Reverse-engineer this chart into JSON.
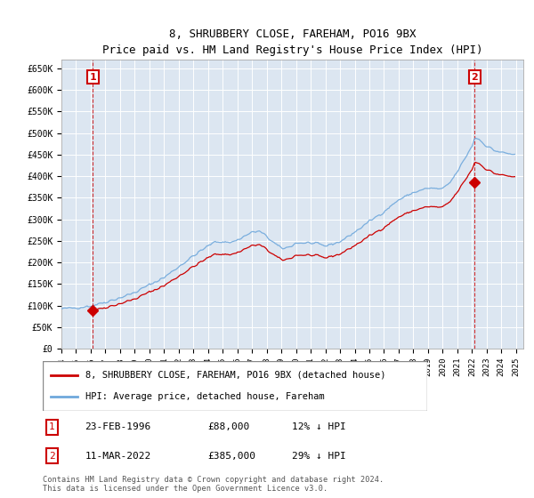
{
  "title": "8, SHRUBBERY CLOSE, FAREHAM, PO16 9BX",
  "subtitle": "Price paid vs. HM Land Registry's House Price Index (HPI)",
  "ylabel_ticks": [
    "£0",
    "£50K",
    "£100K",
    "£150K",
    "£200K",
    "£250K",
    "£300K",
    "£350K",
    "£400K",
    "£450K",
    "£500K",
    "£550K",
    "£600K",
    "£650K"
  ],
  "ytick_values": [
    0,
    50000,
    100000,
    150000,
    200000,
    250000,
    300000,
    350000,
    400000,
    450000,
    500000,
    550000,
    600000,
    650000
  ],
  "ylim": [
    0,
    670000
  ],
  "xlim_start": 1994.0,
  "xlim_end": 2025.5,
  "xticks": [
    1994,
    1995,
    1996,
    1997,
    1998,
    1999,
    2000,
    2001,
    2002,
    2003,
    2004,
    2005,
    2006,
    2007,
    2008,
    2009,
    2010,
    2011,
    2012,
    2013,
    2014,
    2015,
    2016,
    2017,
    2018,
    2019,
    2020,
    2021,
    2022,
    2023,
    2024,
    2025
  ],
  "fig_bg_color": "#ffffff",
  "plot_bg_color": "#dce6f1",
  "hpi_line_color": "#6fa8dc",
  "price_line_color": "#cc0000",
  "vline_color": "#cc0000",
  "sale1_year": 1996.14,
  "sale1_price": 88000,
  "sale2_year": 2022.19,
  "sale2_price": 385000,
  "legend_label1": "8, SHRUBBERY CLOSE, FAREHAM, PO16 9BX (detached house)",
  "legend_label2": "HPI: Average price, detached house, Fareham",
  "table_row1": [
    "1",
    "23-FEB-1996",
    "£88,000",
    "12% ↓ HPI"
  ],
  "table_row2": [
    "2",
    "11-MAR-2022",
    "£385,000",
    "29% ↓ HPI"
  ],
  "footnote": "Contains HM Land Registry data © Crown copyright and database right 2024.\nThis data is licensed under the Open Government Licence v3.0."
}
